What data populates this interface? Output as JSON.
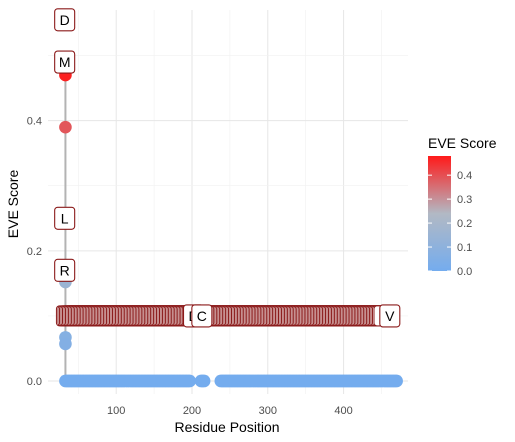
{
  "chart_data": {
    "type": "scatter",
    "title": "",
    "xlabel": "Residue Position",
    "ylabel": "EVE Score",
    "xlim": [
      10,
      485
    ],
    "ylim": [
      -0.02,
      0.57
    ],
    "x_ticks": [
      100,
      200,
      300,
      400
    ],
    "y_ticks": [
      0.0,
      0.2,
      0.4
    ],
    "y_tick_labels": [
      "0.0",
      "0.2",
      "0.4"
    ],
    "grid": true,
    "color_scale": {
      "title": "EVE Score",
      "low_color": "#74acee",
      "mid_color": "#b2b9c4",
      "high_color": "#ff1a1a",
      "min": 0.0,
      "max": 0.48,
      "ticks": [
        0.0,
        0.1,
        0.2,
        0.3,
        0.4
      ],
      "tick_labels": [
        "0.0",
        "0.1",
        "0.2",
        "0.3",
        "0.4"
      ],
      "legend_position": "right"
    },
    "highlight_points": [
      {
        "x": 33,
        "y": 0.47
      },
      {
        "x": 33,
        "y": 0.39
      },
      {
        "x": 33,
        "y": 0.152
      },
      {
        "x": 33,
        "y": 0.067
      },
      {
        "x": 33,
        "y": 0.057
      }
    ],
    "baseline": {
      "y": 0.0,
      "segments": [
        [
          33,
          197
        ],
        [
          212,
          216
        ],
        [
          238,
          470
        ]
      ]
    },
    "labels": [
      {
        "text": "D",
        "x": 32,
        "y": 0.555
      },
      {
        "text": "M",
        "x": 32,
        "y": 0.49
      },
      {
        "text": "L",
        "x": 32,
        "y": 0.25
      },
      {
        "text": "R",
        "x": 32,
        "y": 0.17
      },
      {
        "text": "D",
        "x": 202,
        "y": 0.1
      },
      {
        "text": "C",
        "x": 213,
        "y": 0.1
      },
      {
        "text": "V",
        "x": 461,
        "y": 0.1
      }
    ],
    "label_band": {
      "y": 0.1,
      "segments": [
        [
          33,
          205
        ],
        [
          222,
          452
        ]
      ]
    }
  }
}
